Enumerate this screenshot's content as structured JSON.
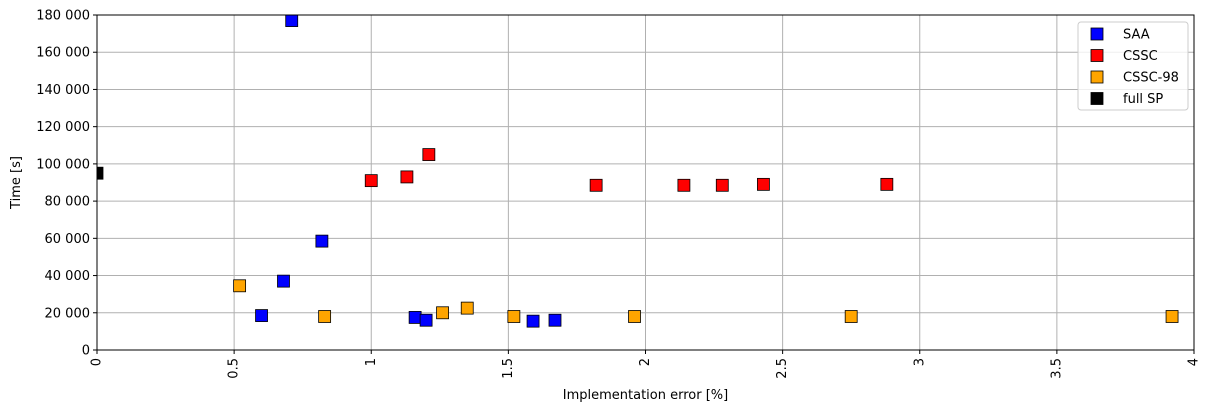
{
  "chart_data": {
    "type": "scatter",
    "xlabel": "Implementation error [%]",
    "ylabel": "Time [s]",
    "xlim": [
      0,
      4
    ],
    "ylim": [
      0,
      180000
    ],
    "xticks": [
      0,
      0.5,
      1,
      1.5,
      2,
      2.5,
      3,
      3.5,
      4
    ],
    "xtick_labels": [
      "0",
      "0.5",
      "1",
      "1.5",
      "2",
      "2.5",
      "3",
      "3.5",
      "4"
    ],
    "yticks": [
      0,
      20000,
      40000,
      60000,
      80000,
      100000,
      120000,
      140000,
      160000,
      180000
    ],
    "ytick_labels": [
      "0",
      "20 000",
      "40 000",
      "60 000",
      "80 000",
      "100 000",
      "120 000",
      "140 000",
      "160 000",
      "180 000"
    ],
    "grid": true,
    "legend_position": "top-right",
    "series": [
      {
        "name": "SAA",
        "color": "#0000ff",
        "points": [
          {
            "x": 0.6,
            "y": 18500
          },
          {
            "x": 0.68,
            "y": 37000
          },
          {
            "x": 0.71,
            "y": 177000
          },
          {
            "x": 0.82,
            "y": 58500
          },
          {
            "x": 1.16,
            "y": 17500
          },
          {
            "x": 1.2,
            "y": 16000
          },
          {
            "x": 1.59,
            "y": 15500
          },
          {
            "x": 1.67,
            "y": 16000
          }
        ]
      },
      {
        "name": "CSSC",
        "color": "#ff0000",
        "points": [
          {
            "x": 1.0,
            "y": 91000
          },
          {
            "x": 1.13,
            "y": 93000
          },
          {
            "x": 1.21,
            "y": 105000
          },
          {
            "x": 1.82,
            "y": 88500
          },
          {
            "x": 2.14,
            "y": 88500
          },
          {
            "x": 2.28,
            "y": 88500
          },
          {
            "x": 2.43,
            "y": 89000
          },
          {
            "x": 2.88,
            "y": 89000
          }
        ]
      },
      {
        "name": "CSSC-98",
        "color": "#ffa500",
        "points": [
          {
            "x": 0.52,
            "y": 34500
          },
          {
            "x": 0.83,
            "y": 18000
          },
          {
            "x": 1.26,
            "y": 20000
          },
          {
            "x": 1.35,
            "y": 22500
          },
          {
            "x": 1.52,
            "y": 18000
          },
          {
            "x": 1.96,
            "y": 18000
          },
          {
            "x": 2.75,
            "y": 18000
          },
          {
            "x": 3.92,
            "y": 18000
          }
        ]
      },
      {
        "name": "full SP",
        "color": "#000000",
        "points": [
          {
            "x": 0.0,
            "y": 95000
          }
        ]
      }
    ]
  }
}
